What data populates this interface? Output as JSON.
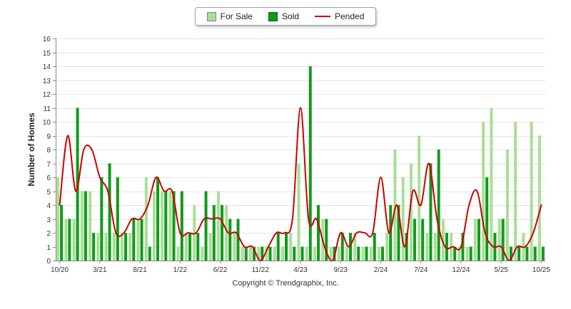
{
  "legend": {
    "items": [
      {
        "label": "For Sale",
        "type": "swatch",
        "color": "#a8df98"
      },
      {
        "label": "Sold",
        "type": "swatch",
        "color": "#12991b"
      },
      {
        "label": "Pended",
        "type": "line",
        "color": "#cc0000"
      }
    ]
  },
  "ylabel": "Number of Homes",
  "footer": {
    "copyright": "Copyright © Trendgraphix, Inc."
  },
  "chart_data": {
    "type": "bar",
    "title": "",
    "xlabel": "",
    "ylabel": "Number of Homes",
    "ylim": [
      0,
      16
    ],
    "ytick_step": 1,
    "x_tick_every": 5,
    "grid": true,
    "legend_position": "top",
    "colors": {
      "grid": "#e4e4e4",
      "axis": "#8a8a8a",
      "tick_text": "#333333"
    },
    "categories": [
      "10/20",
      "11/20",
      "12/20",
      "1/21",
      "2/21",
      "3/21",
      "4/21",
      "5/21",
      "6/21",
      "7/21",
      "8/21",
      "9/21",
      "10/21",
      "11/21",
      "12/21",
      "1/22",
      "2/22",
      "3/22",
      "4/22",
      "5/22",
      "6/22",
      "7/22",
      "8/22",
      "9/22",
      "10/22",
      "11/22",
      "12/22",
      "1/23",
      "2/23",
      "3/23",
      "4/23",
      "5/23",
      "6/23",
      "7/23",
      "8/23",
      "9/23",
      "10/23",
      "11/23",
      "12/23",
      "1/24",
      "2/24",
      "3/24",
      "4/24",
      "5/24",
      "6/24",
      "7/24",
      "8/24",
      "9/24",
      "10/24",
      "11/24",
      "12/24",
      "1/25",
      "2/25",
      "3/25",
      "4/25",
      "5/25",
      "6/25",
      "7/25",
      "8/25",
      "9/25",
      "10/25"
    ],
    "x_tick_labels": [
      "10/20",
      "3/21",
      "8/21",
      "1/22",
      "6/22",
      "11/22",
      "4/23",
      "9/23",
      "2/24",
      "7/24",
      "12/24",
      "5/25",
      "10/25"
    ],
    "series": [
      {
        "name": "For Sale",
        "type": "bar",
        "color": "#a8df98",
        "values": [
          6,
          3,
          3,
          5,
          5,
          2,
          2,
          2,
          2,
          2,
          3,
          6,
          5,
          5,
          5,
          1,
          2,
          4,
          1,
          2,
          5,
          4,
          2,
          1,
          1,
          1,
          1,
          1,
          1,
          2,
          7,
          1,
          1,
          3,
          1,
          1,
          1,
          2,
          1,
          1,
          1,
          2,
          8,
          6,
          7,
          9,
          2,
          2,
          3,
          2,
          1,
          1,
          3,
          10,
          11,
          3,
          8,
          10,
          2,
          10,
          9
        ]
      },
      {
        "name": "Sold",
        "type": "bar",
        "color": "#12991b",
        "values": [
          4,
          3,
          11,
          5,
          2,
          6,
          7,
          6,
          2,
          3,
          3,
          1,
          6,
          5,
          5,
          5,
          2,
          2,
          5,
          4,
          4,
          3,
          3,
          1,
          1,
          1,
          1,
          2,
          2,
          1,
          1,
          14,
          4,
          3,
          1,
          2,
          2,
          1,
          1,
          2,
          1,
          4,
          4,
          2,
          3,
          3,
          7,
          8,
          2,
          1,
          2,
          1,
          3,
          6,
          2,
          3,
          1,
          1,
          1,
          1,
          1
        ]
      },
      {
        "name": "Pended",
        "type": "line",
        "color": "#cc0000",
        "values": [
          4,
          9,
          5,
          8,
          8,
          6,
          5,
          2,
          2,
          3,
          3,
          4,
          6,
          5,
          5,
          2,
          2,
          2,
          3,
          3,
          3,
          2,
          2,
          1,
          1,
          0,
          1,
          2,
          2,
          3,
          11,
          3,
          3,
          1,
          0,
          2,
          1,
          2,
          2,
          2,
          6,
          2,
          4,
          1,
          5,
          4,
          7,
          3,
          1,
          1,
          1,
          4,
          5,
          2,
          1,
          1,
          0,
          1,
          1,
          2,
          4
        ]
      }
    ]
  }
}
